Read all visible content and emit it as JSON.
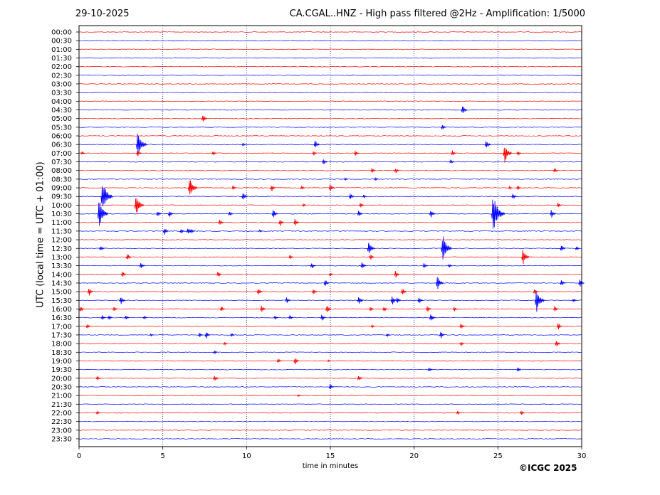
{
  "chart_data": {
    "type": "line",
    "date": "29-10-2025",
    "title": "CA.CGAL..HNZ - High pass filtered @2Hz - Amplification: 1/5000",
    "xlabel": "time in minutes",
    "ylabel": "UTC (local time = UTC + 01:00)",
    "xlim": [
      0,
      30
    ],
    "x_ticks": [
      "0",
      "5",
      "10",
      "15",
      "20",
      "25",
      "30"
    ],
    "y_ticks": [
      "00:00",
      "00:30",
      "01:00",
      "01:30",
      "02:00",
      "02:30",
      "03:00",
      "03:30",
      "04:00",
      "04:30",
      "05:00",
      "05:30",
      "06:00",
      "06:30",
      "07:00",
      "07:30",
      "08:00",
      "08:30",
      "09:00",
      "09:30",
      "10:00",
      "10:30",
      "11:00",
      "11:30",
      "12:00",
      "12:30",
      "13:00",
      "13:30",
      "14:00",
      "14:30",
      "15:00",
      "15:30",
      "16:00",
      "16:30",
      "17:00",
      "17:30",
      "18:00",
      "18:30",
      "19:00",
      "19:30",
      "20:00",
      "20:30",
      "21:00",
      "21:30",
      "22:00",
      "22:30",
      "23:00",
      "23:30"
    ],
    "colors": [
      "#ff0000",
      "#0000ff"
    ],
    "events": [
      {
        "trace": "04:30",
        "minute": 22.9,
        "amp": 8
      },
      {
        "trace": "05:00",
        "minute": 7.4,
        "amp": 7
      },
      {
        "trace": "05:30",
        "minute": 21.7,
        "amp": 5
      },
      {
        "trace": "06:30",
        "minute": 3.5,
        "amp": 22
      },
      {
        "trace": "06:30",
        "minute": 9.8,
        "amp": 3
      },
      {
        "trace": "06:30",
        "minute": 14.1,
        "amp": 7
      },
      {
        "trace": "06:30",
        "minute": 24.3,
        "amp": 8
      },
      {
        "trace": "07:00",
        "minute": 0.2,
        "amp": 3
      },
      {
        "trace": "07:00",
        "minute": 3.5,
        "amp": 6
      },
      {
        "trace": "07:00",
        "minute": 8.0,
        "amp": 4
      },
      {
        "trace": "07:00",
        "minute": 14.0,
        "amp": 4
      },
      {
        "trace": "07:00",
        "minute": 16.5,
        "amp": 5
      },
      {
        "trace": "07:00",
        "minute": 22.3,
        "amp": 5
      },
      {
        "trace": "07:00",
        "minute": 25.4,
        "amp": 16
      },
      {
        "trace": "07:00",
        "minute": 26.2,
        "amp": 4
      },
      {
        "trace": "07:30",
        "minute": 14.6,
        "amp": 5
      },
      {
        "trace": "07:30",
        "minute": 22.2,
        "amp": 4
      },
      {
        "trace": "08:00",
        "minute": 17.5,
        "amp": 4
      },
      {
        "trace": "08:00",
        "minute": 18.9,
        "amp": 5
      },
      {
        "trace": "08:00",
        "minute": 28.4,
        "amp": 4
      },
      {
        "trace": "08:30",
        "minute": 15.9,
        "amp": 2
      },
      {
        "trace": "08:30",
        "minute": 17.7,
        "amp": 3
      },
      {
        "trace": "09:00",
        "minute": 6.6,
        "amp": 18
      },
      {
        "trace": "09:00",
        "minute": 9.2,
        "amp": 4
      },
      {
        "trace": "09:00",
        "minute": 11.5,
        "amp": 6
      },
      {
        "trace": "09:00",
        "minute": 13.3,
        "amp": 4
      },
      {
        "trace": "09:00",
        "minute": 15.0,
        "amp": 7
      },
      {
        "trace": "09:00",
        "minute": 25.7,
        "amp": 3
      },
      {
        "trace": "09:00",
        "minute": 26.2,
        "amp": 4
      },
      {
        "trace": "09:30",
        "minute": 1.4,
        "amp": 26
      },
      {
        "trace": "09:30",
        "minute": 9.8,
        "amp": 7
      },
      {
        "trace": "09:30",
        "minute": 16.2,
        "amp": 6
      },
      {
        "trace": "09:30",
        "minute": 17.0,
        "amp": 3
      },
      {
        "trace": "09:30",
        "minute": 25.9,
        "amp": 5
      },
      {
        "trace": "10:00",
        "minute": 3.4,
        "amp": 18
      },
      {
        "trace": "10:00",
        "minute": 13.4,
        "amp": 3
      },
      {
        "trace": "10:00",
        "minute": 16.8,
        "amp": 5
      },
      {
        "trace": "10:00",
        "minute": 28.6,
        "amp": 4
      },
      {
        "trace": "10:30",
        "minute": 1.2,
        "amp": 22
      },
      {
        "trace": "10:30",
        "minute": 4.7,
        "amp": 5
      },
      {
        "trace": "10:30",
        "minute": 5.4,
        "amp": 6
      },
      {
        "trace": "10:30",
        "minute": 9.0,
        "amp": 4
      },
      {
        "trace": "10:30",
        "minute": 11.6,
        "amp": 8
      },
      {
        "trace": "10:30",
        "minute": 16.7,
        "amp": 6
      },
      {
        "trace": "10:30",
        "minute": 21.0,
        "amp": 7
      },
      {
        "trace": "10:30",
        "minute": 24.7,
        "amp": 30
      },
      {
        "trace": "10:30",
        "minute": 28.2,
        "amp": 7
      },
      {
        "trace": "11:00",
        "minute": 8.4,
        "amp": 6
      },
      {
        "trace": "11:00",
        "minute": 12.0,
        "amp": 6
      },
      {
        "trace": "11:00",
        "minute": 12.9,
        "amp": 6
      },
      {
        "trace": "11:30",
        "minute": 5.1,
        "amp": 6
      },
      {
        "trace": "11:30",
        "minute": 6.1,
        "amp": 4
      },
      {
        "trace": "11:30",
        "minute": 6.5,
        "amp": 6
      },
      {
        "trace": "11:30",
        "minute": 6.7,
        "amp": 5
      },
      {
        "trace": "11:30",
        "minute": 10.8,
        "amp": 2
      },
      {
        "trace": "12:30",
        "minute": 1.3,
        "amp": 5
      },
      {
        "trace": "12:30",
        "minute": 17.3,
        "amp": 12
      },
      {
        "trace": "12:30",
        "minute": 21.7,
        "amp": 22
      },
      {
        "trace": "12:30",
        "minute": 28.8,
        "amp": 6
      },
      {
        "trace": "12:30",
        "minute": 29.7,
        "amp": 4
      },
      {
        "trace": "13:00",
        "minute": 2.9,
        "amp": 6
      },
      {
        "trace": "13:00",
        "minute": 12.6,
        "amp": 4
      },
      {
        "trace": "13:00",
        "minute": 17.4,
        "amp": 5
      },
      {
        "trace": "13:00",
        "minute": 26.5,
        "amp": 13
      },
      {
        "trace": "13:30",
        "minute": 3.7,
        "amp": 5
      },
      {
        "trace": "13:30",
        "minute": 13.9,
        "amp": 5
      },
      {
        "trace": "13:30",
        "minute": 16.9,
        "amp": 6
      },
      {
        "trace": "13:30",
        "minute": 20.6,
        "amp": 5
      },
      {
        "trace": "13:30",
        "minute": 22.1,
        "amp": 3
      },
      {
        "trace": "14:00",
        "minute": 2.6,
        "amp": 5
      },
      {
        "trace": "14:00",
        "minute": 8.3,
        "amp": 5
      },
      {
        "trace": "14:00",
        "minute": 15.0,
        "amp": 3
      },
      {
        "trace": "14:00",
        "minute": 18.9,
        "amp": 6
      },
      {
        "trace": "14:30",
        "minute": 14.7,
        "amp": 6
      },
      {
        "trace": "14:30",
        "minute": 21.4,
        "amp": 12
      },
      {
        "trace": "14:30",
        "minute": 28.8,
        "amp": 5
      },
      {
        "trace": "14:30",
        "minute": 29.9,
        "amp": 7
      },
      {
        "trace": "15:00",
        "minute": 0.6,
        "amp": 7
      },
      {
        "trace": "15:00",
        "minute": 10.7,
        "amp": 6
      },
      {
        "trace": "15:00",
        "minute": 14.0,
        "amp": 5
      },
      {
        "trace": "15:00",
        "minute": 19.3,
        "amp": 7
      },
      {
        "trace": "15:00",
        "minute": 27.2,
        "amp": 5
      },
      {
        "trace": "15:30",
        "minute": 2.5,
        "amp": 7
      },
      {
        "trace": "15:30",
        "minute": 12.4,
        "amp": 5
      },
      {
        "trace": "15:30",
        "minute": 16.7,
        "amp": 7
      },
      {
        "trace": "15:30",
        "minute": 18.7,
        "amp": 8
      },
      {
        "trace": "15:30",
        "minute": 19.0,
        "amp": 5
      },
      {
        "trace": "15:30",
        "minute": 20.3,
        "amp": 5
      },
      {
        "trace": "15:30",
        "minute": 27.3,
        "amp": 18
      },
      {
        "trace": "15:30",
        "minute": 29.5,
        "amp": 4
      },
      {
        "trace": "16:00",
        "minute": 0.1,
        "amp": 5
      },
      {
        "trace": "16:00",
        "minute": 2.1,
        "amp": 4
      },
      {
        "trace": "16:00",
        "minute": 8.5,
        "amp": 5
      },
      {
        "trace": "16:00",
        "minute": 10.9,
        "amp": 6
      },
      {
        "trace": "16:00",
        "minute": 14.8,
        "amp": 7
      },
      {
        "trace": "16:00",
        "minute": 17.4,
        "amp": 4
      },
      {
        "trace": "16:00",
        "minute": 18.2,
        "amp": 5
      },
      {
        "trace": "16:00",
        "minute": 20.8,
        "amp": 5
      },
      {
        "trace": "16:00",
        "minute": 22.4,
        "amp": 4
      },
      {
        "trace": "16:00",
        "minute": 28.4,
        "amp": 5
      },
      {
        "trace": "16:30",
        "minute": 1.4,
        "amp": 4
      },
      {
        "trace": "16:30",
        "minute": 1.8,
        "amp": 4
      },
      {
        "trace": "16:30",
        "minute": 2.8,
        "amp": 4
      },
      {
        "trace": "16:30",
        "minute": 3.9,
        "amp": 3
      },
      {
        "trace": "16:30",
        "minute": 11.7,
        "amp": 4
      },
      {
        "trace": "16:30",
        "minute": 12.6,
        "amp": 4
      },
      {
        "trace": "16:30",
        "minute": 14.5,
        "amp": 5
      },
      {
        "trace": "16:30",
        "minute": 21.0,
        "amp": 7
      },
      {
        "trace": "17:00",
        "minute": 0.5,
        "amp": 4
      },
      {
        "trace": "17:00",
        "minute": 17.5,
        "amp": 3
      },
      {
        "trace": "17:00",
        "minute": 22.8,
        "amp": 5
      },
      {
        "trace": "17:00",
        "minute": 28.6,
        "amp": 6
      },
      {
        "trace": "17:30",
        "minute": 4.3,
        "amp": 2
      },
      {
        "trace": "17:30",
        "minute": 7.2,
        "amp": 4
      },
      {
        "trace": "17:30",
        "minute": 7.6,
        "amp": 6
      },
      {
        "trace": "17:30",
        "minute": 9.1,
        "amp": 3
      },
      {
        "trace": "17:30",
        "minute": 18.4,
        "amp": 3
      },
      {
        "trace": "17:30",
        "minute": 21.6,
        "amp": 6
      },
      {
        "trace": "18:00",
        "minute": 8.7,
        "amp": 3
      },
      {
        "trace": "18:00",
        "minute": 22.8,
        "amp": 4
      },
      {
        "trace": "18:00",
        "minute": 28.5,
        "amp": 6
      },
      {
        "trace": "18:30",
        "minute": 8.1,
        "amp": 3
      },
      {
        "trace": "19:00",
        "minute": 11.9,
        "amp": 4
      },
      {
        "trace": "19:00",
        "minute": 12.9,
        "amp": 6
      },
      {
        "trace": "19:00",
        "minute": 14.9,
        "amp": 2
      },
      {
        "trace": "19:30",
        "minute": 20.9,
        "amp": 4
      },
      {
        "trace": "19:30",
        "minute": 26.2,
        "amp": 4
      },
      {
        "trace": "20:00",
        "minute": 1.1,
        "amp": 4
      },
      {
        "trace": "20:00",
        "minute": 8.1,
        "amp": 5
      },
      {
        "trace": "20:00",
        "minute": 16.7,
        "amp": 5
      },
      {
        "trace": "20:30",
        "minute": 15.0,
        "amp": 5
      },
      {
        "trace": "21:00",
        "minute": 13.1,
        "amp": 2
      },
      {
        "trace": "22:00",
        "minute": 1.1,
        "amp": 3
      },
      {
        "trace": "22:00",
        "minute": 22.6,
        "amp": 3
      },
      {
        "trace": "22:00",
        "minute": 26.4,
        "amp": 4
      }
    ]
  },
  "footer": {
    "copyright": "©ICGC 2025"
  }
}
